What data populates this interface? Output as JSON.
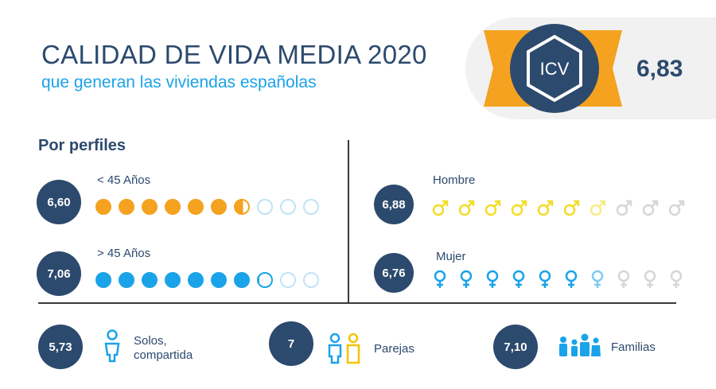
{
  "header": {
    "title": "CALIDAD DE VIDA MEDIA 2020",
    "subtitle": "que generan las viviendas españolas"
  },
  "icv": {
    "label": "ICV",
    "value": "6,83",
    "colors": {
      "ribbon": "#f4a21f",
      "hex": "#2c4a6e",
      "panel": "#f1f1f1"
    }
  },
  "profiles": {
    "section_title": "Por perfiles",
    "rows": [
      {
        "value": "6,60",
        "label": "<  45 Años",
        "icon": "circle-dot",
        "score": 6.6,
        "total": 10,
        "color": "#f4a21f"
      },
      {
        "value": "7,06",
        "label": ">  45 Años",
        "icon": "circle-dot",
        "score": 7.06,
        "total": 10,
        "color": "#1aa3e8"
      },
      {
        "value": "6,88",
        "label": "Hombre",
        "icon": "male-symbol",
        "score": 6.88,
        "total": 10,
        "color": "#f2dd27"
      },
      {
        "value": "6,76",
        "label": "Mujer",
        "icon": "female-symbol",
        "score": 6.76,
        "total": 10,
        "color": "#1aa3e8"
      }
    ]
  },
  "households": [
    {
      "value": "5,73",
      "label_line1": "Solos,",
      "label_line2": "compartida",
      "icon": "single-person-icon"
    },
    {
      "value": "7",
      "label_line1": "Parejas",
      "label_line2": "",
      "icon": "couple-icon"
    },
    {
      "value": "7,10",
      "label_line1": "Familias",
      "label_line2": "",
      "icon": "family-icon"
    }
  ],
  "colors": {
    "navy": "#2c4a6e",
    "empty": "#d6d6d6",
    "empty_blue": "#bfe4f7"
  }
}
